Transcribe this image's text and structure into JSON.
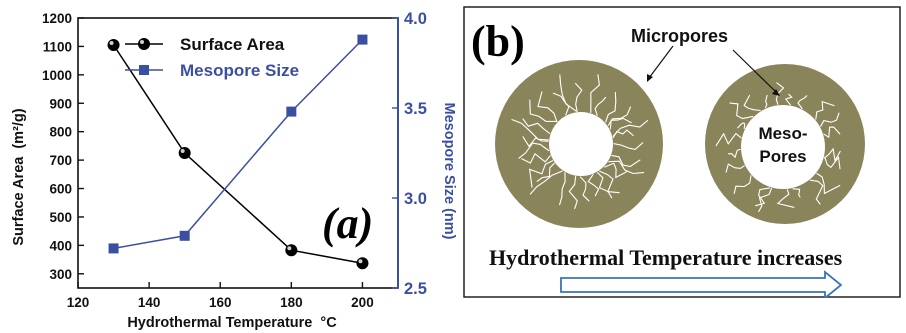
{
  "chart_data": {
    "type": "line",
    "panel_label": "(a)",
    "xlabel": "Hydrothermal Temperature",
    "xlabel_unit": "°C",
    "ylabel_left": "Surface Area",
    "ylabel_left_unit": "(m²/g)",
    "ylabel_right": "Mesopore Size (nm)",
    "xlim": [
      120,
      210
    ],
    "ylim_left": [
      250,
      1200
    ],
    "ylim_right": [
      2.5,
      4.0
    ],
    "x_ticks": [
      120,
      140,
      160,
      180,
      200
    ],
    "y_ticks_left": [
      300,
      400,
      500,
      600,
      700,
      800,
      900,
      1000,
      1100,
      1200
    ],
    "y_ticks_right": [
      2.5,
      3.0,
      3.5,
      4.0
    ],
    "grid": false,
    "legend_position": "top-left",
    "series": [
      {
        "name": "Surface Area",
        "axis": "left",
        "color": "#000000",
        "marker": "sphere",
        "x": [
          130,
          150,
          180,
          200
        ],
        "values": [
          1105,
          725,
          383,
          337
        ]
      },
      {
        "name": "Mesopore Size",
        "axis": "right",
        "color": "#3b4fa0",
        "marker": "square",
        "x": [
          130,
          150,
          180,
          200
        ],
        "values": [
          2.72,
          2.79,
          3.48,
          3.88
        ]
      }
    ]
  },
  "panel_b": {
    "panel_label": "(b)",
    "label_micropores": "Micropores",
    "label_mesopores_line1": "Meso-",
    "label_mesopores_line2": "Pores",
    "caption": "Hydrothermal Temperature increases",
    "disk_color": "#8a845a",
    "arrow_color": "#3b74b8"
  }
}
